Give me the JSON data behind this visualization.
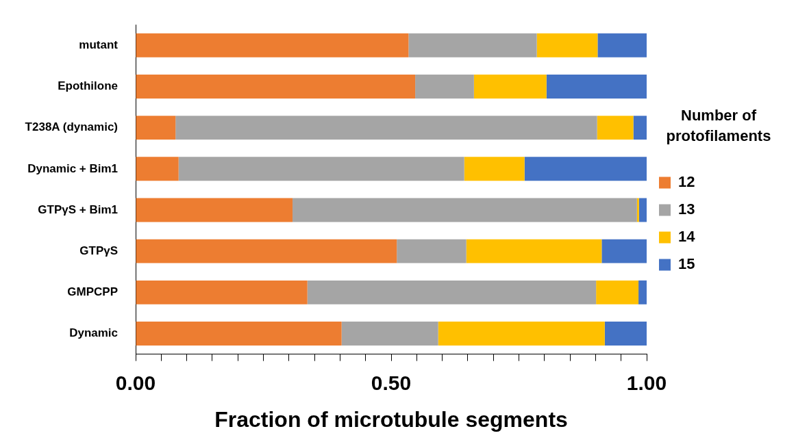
{
  "chart_data": {
    "type": "bar",
    "orientation": "horizontal",
    "stacked": true,
    "xlabel": "Fraction of microtubule segments",
    "legend_title": "Number of protofilaments",
    "legend": "right",
    "grid": false,
    "categories": [
      "mutant",
      "Epothilone",
      "T238A (dynamic)",
      "Dynamic + Bim1",
      "GTPγS + Bim1",
      "GTPγS",
      "GMPCPP",
      "Dynamic"
    ],
    "series": [
      {
        "name": "12",
        "color": "#ed7d31",
        "values": [
          0.534,
          0.547,
          0.078,
          0.084,
          0.307,
          0.511,
          0.336,
          0.403
        ]
      },
      {
        "name": "13",
        "color": "#a5a5a5",
        "values": [
          0.251,
          0.115,
          0.825,
          0.559,
          0.674,
          0.136,
          0.565,
          0.189
        ]
      },
      {
        "name": "14",
        "color": "#ffc000",
        "values": [
          0.119,
          0.142,
          0.071,
          0.118,
          0.004,
          0.265,
          0.083,
          0.326
        ]
      },
      {
        "name": "15",
        "color": "#4472c4",
        "values": [
          0.096,
          0.196,
          0.026,
          0.239,
          0.015,
          0.088,
          0.016,
          0.082
        ]
      }
    ],
    "xlim": [
      0,
      1
    ],
    "xticks": [
      {
        "value": 0,
        "label": "0.00"
      },
      {
        "value": 0.05,
        "label": null
      },
      {
        "value": 0.1,
        "label": null
      },
      {
        "value": 0.15,
        "label": null
      },
      {
        "value": 0.2,
        "label": null
      },
      {
        "value": 0.25,
        "label": null
      },
      {
        "value": 0.3,
        "label": null
      },
      {
        "value": 0.35,
        "label": null
      },
      {
        "value": 0.4,
        "label": null
      },
      {
        "value": 0.45,
        "label": null
      },
      {
        "value": 0.5,
        "label": "0.50"
      },
      {
        "value": 0.55,
        "label": null
      },
      {
        "value": 0.6,
        "label": null
      },
      {
        "value": 0.65,
        "label": null
      },
      {
        "value": 0.7,
        "label": null
      },
      {
        "value": 0.75,
        "label": null
      },
      {
        "value": 0.8,
        "label": null
      },
      {
        "value": 0.85,
        "label": null
      },
      {
        "value": 0.9,
        "label": null
      },
      {
        "value": 0.95,
        "label": null
      },
      {
        "value": 1,
        "label": "1.00"
      }
    ]
  }
}
